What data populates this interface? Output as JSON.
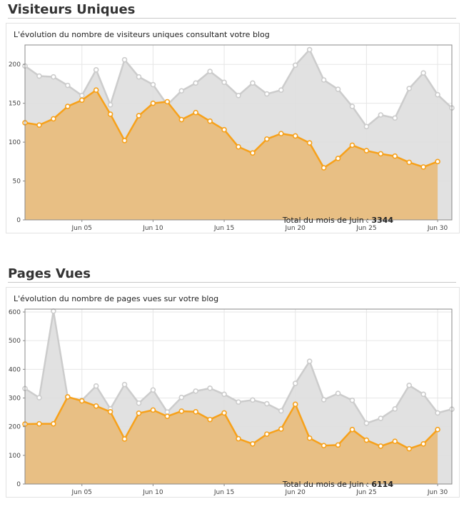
{
  "sections": [
    {
      "title": "Visiteurs Uniques",
      "subtitle": "L'évolution du nombre de visiteurs uniques consultant votre blog",
      "total_label": "Total du mois de Juin :",
      "total_value": "3344"
    },
    {
      "title": "Pages Vues",
      "subtitle": "L'évolution du nombre de pages vues sur votre blog",
      "total_label": "Total du mois de Juin :",
      "total_value": "6114"
    }
  ],
  "colors": {
    "current_line": "#f7a11a",
    "current_fill": "#e8bd7e",
    "previous_line": "#cccccc",
    "previous_fill": "#dedede",
    "grid": "#e6e6e6",
    "axis": "#888888"
  },
  "chart_data": [
    {
      "type": "area",
      "title": "",
      "xlabel": "",
      "ylabel": "",
      "x_ticks": [
        "Jun 05",
        "Jun 10",
        "Jun 15",
        "Jun 20",
        "Jun 25",
        "Jun 30"
      ],
      "x_tick_days": [
        5,
        10,
        15,
        20,
        25,
        30
      ],
      "xlim": [
        1,
        31
      ],
      "ylim": [
        0,
        225
      ],
      "y_ticks": [
        0,
        50,
        100,
        150,
        200
      ],
      "grid": true,
      "series": [
        {
          "x": [
            1,
            2,
            3,
            4,
            5,
            6,
            7,
            8,
            9,
            10,
            11,
            12,
            13,
            14,
            15,
            16,
            17,
            18,
            19,
            20,
            21,
            22,
            23,
            24,
            25,
            26,
            27,
            28,
            29,
            30,
            31
          ],
          "values": [
            198,
            185,
            184,
            173,
            160,
            193,
            148,
            206,
            184,
            174,
            148,
            166,
            176,
            191,
            177,
            160,
            176,
            162,
            167,
            199,
            219,
            180,
            168,
            146,
            120,
            135,
            131,
            169,
            189,
            161,
            144
          ]
        },
        {
          "x": [
            1,
            2,
            3,
            4,
            5,
            6,
            7,
            8,
            9,
            10,
            11,
            12,
            13,
            14,
            15,
            16,
            17,
            18,
            19,
            20,
            21,
            22,
            23,
            24,
            25,
            26,
            27,
            28,
            29,
            30
          ],
          "values": [
            125,
            122,
            130,
            146,
            154,
            167,
            136,
            102,
            134,
            150,
            152,
            129,
            138,
            127,
            116,
            94,
            86,
            104,
            111,
            108,
            99,
            67,
            79,
            96,
            89,
            85,
            82,
            74,
            68,
            75
          ]
        }
      ]
    },
    {
      "type": "area",
      "title": "",
      "xlabel": "",
      "ylabel": "",
      "x_ticks": [
        "Jun 05",
        "Jun 10",
        "Jun 15",
        "Jun 20",
        "Jun 25",
        "Jun 30"
      ],
      "x_tick_days": [
        5,
        10,
        15,
        20,
        25,
        30
      ],
      "xlim": [
        1,
        31
      ],
      "ylim": [
        0,
        610
      ],
      "y_ticks": [
        0,
        100,
        200,
        300,
        400,
        500,
        600
      ],
      "grid": true,
      "series": [
        {
          "x": [
            1,
            2,
            3,
            4,
            5,
            6,
            7,
            8,
            9,
            10,
            11,
            12,
            13,
            14,
            15,
            16,
            17,
            18,
            19,
            20,
            21,
            22,
            23,
            24,
            25,
            26,
            27,
            28,
            29,
            30,
            31
          ],
          "values": [
            333,
            301,
            603,
            302,
            292,
            342,
            262,
            347,
            282,
            328,
            251,
            302,
            324,
            334,
            313,
            286,
            293,
            280,
            255,
            351,
            428,
            294,
            316,
            292,
            212,
            229,
            262,
            344,
            313,
            248,
            261
          ]
        },
        {
          "x": [
            1,
            2,
            3,
            4,
            5,
            6,
            7,
            8,
            9,
            10,
            11,
            12,
            13,
            14,
            15,
            16,
            17,
            18,
            19,
            20,
            21,
            22,
            23,
            24,
            25,
            26,
            27,
            28,
            29,
            30
          ],
          "values": [
            209,
            210,
            210,
            304,
            290,
            272,
            252,
            157,
            247,
            258,
            236,
            254,
            252,
            225,
            248,
            158,
            140,
            174,
            192,
            278,
            160,
            134,
            136,
            190,
            153,
            132,
            149,
            123,
            140,
            190
          ]
        }
      ]
    }
  ]
}
